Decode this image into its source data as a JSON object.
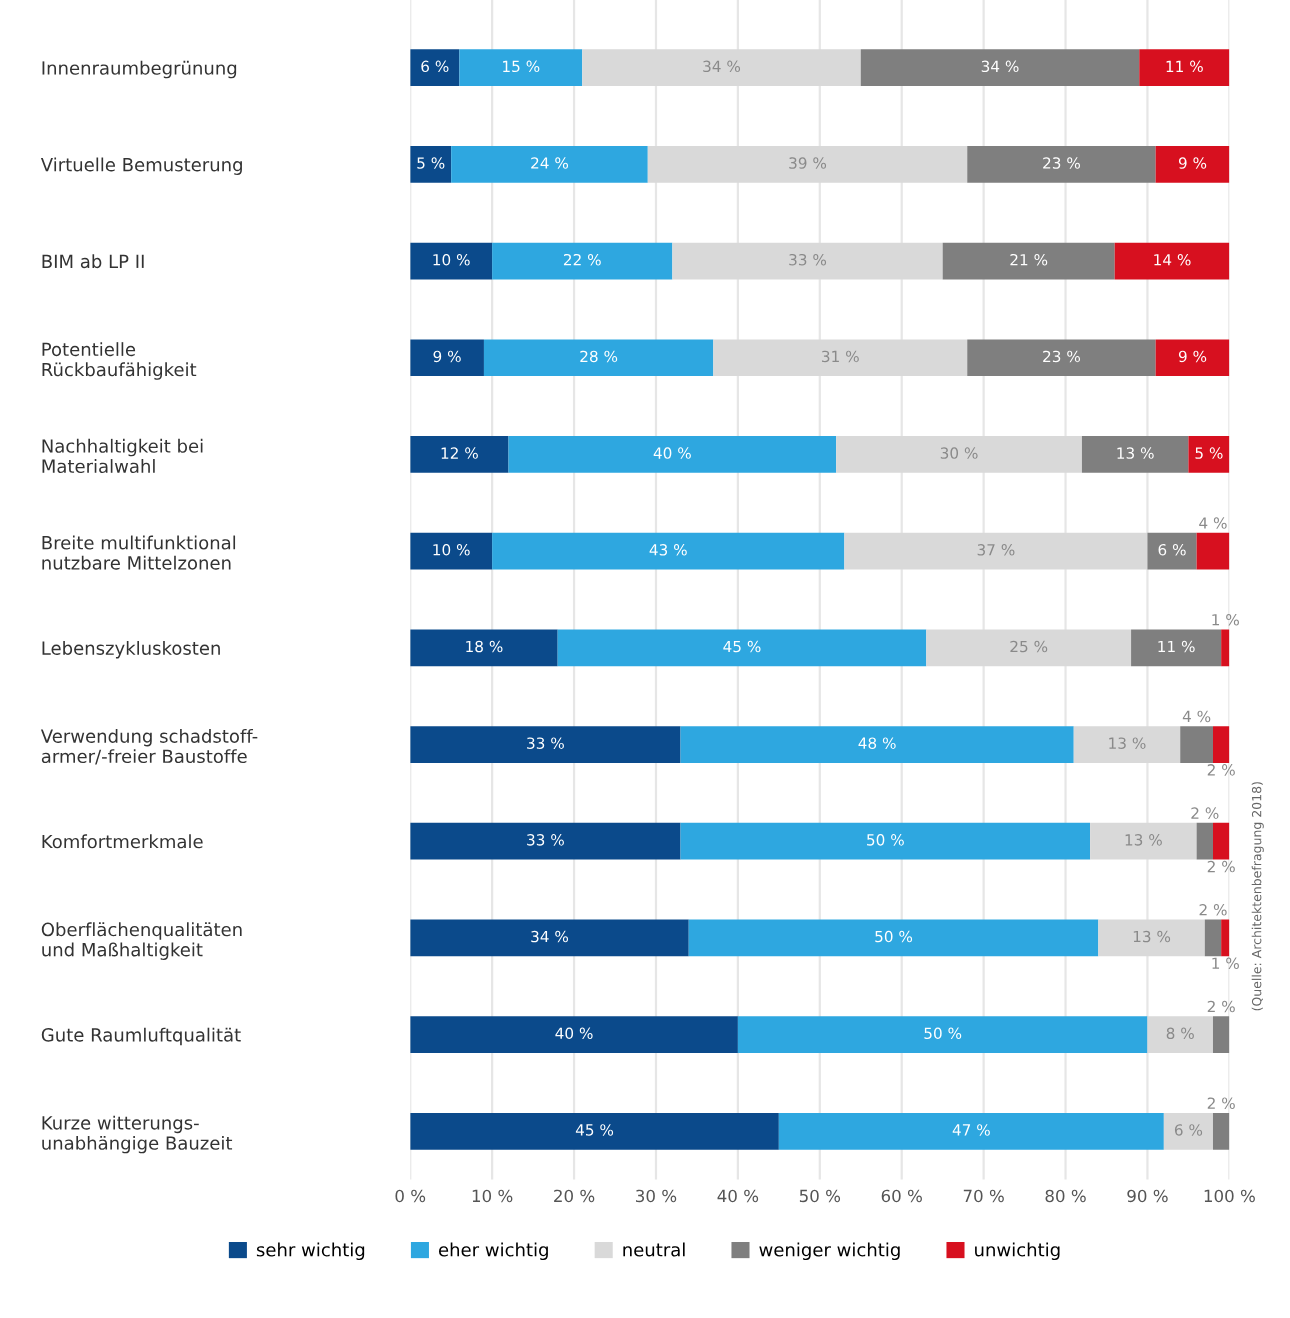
{
  "chart_data": {
    "type": "bar",
    "orientation": "horizontal",
    "stacked": true,
    "categories": [
      "Innenraumbegrünung",
      "Virtuelle Bemusterung",
      "BIM ab LP II",
      "Potentielle\nRückbaufähigkeit",
      "Nachhaltigkeit bei\nMaterialwahl",
      "Breite multifunktional\nnutzbare Mittelzonen",
      "Lebenszykluskosten",
      "Verwendung schadstoff-\narmer/-freier Baustoffe",
      "Komfortmerkmale",
      "Oberflächenqualitäten\nund Maßhaltigkeit",
      "Gute Raumluftqualität",
      "Kurze witterungs-\nunabhängige Bauzeit"
    ],
    "series": [
      {
        "name": "sehr wichtig",
        "color": "#0b4a8b",
        "values": [
          6,
          5,
          10,
          9,
          12,
          10,
          18,
          33,
          33,
          34,
          40,
          45
        ],
        "value_labels": [
          "6 %",
          "5 %",
          "10 %",
          "9 %",
          "12 %",
          "10 %",
          "18 %",
          "33 %",
          "33 %",
          "34 %",
          "40 %",
          "45 %"
        ]
      },
      {
        "name": "eher wichtig",
        "color": "#2ea7e0",
        "values": [
          15,
          24,
          22,
          28,
          40,
          43,
          45,
          48,
          50,
          50,
          50,
          47
        ],
        "value_labels": [
          "15 %",
          "24 %",
          "22 %",
          "28 %",
          "40 %",
          "43 %",
          "45 %",
          "48 %",
          "50 %",
          "50 %",
          "50 %",
          "47 %"
        ]
      },
      {
        "name": "neutral",
        "color": "#d9d9d9",
        "values": [
          34,
          39,
          33,
          31,
          30,
          37,
          25,
          13,
          13,
          13,
          8,
          6
        ],
        "value_labels": [
          "34 %",
          "39 %",
          "33 %",
          "31 %",
          "30 %",
          "37 %",
          "25 %",
          "13 %",
          "13 %",
          "13 %",
          "8 %",
          "6 %"
        ]
      },
      {
        "name": "weniger wichtig",
        "color": "#7f7f7f",
        "values": [
          34,
          23,
          21,
          23,
          13,
          6,
          11,
          4,
          2,
          2,
          2,
          2
        ],
        "value_labels": [
          "34 %",
          "23 %",
          "21 %",
          "23 %",
          "13 %",
          "6 %",
          "11 %",
          "4 %",
          "2 %",
          "2 %",
          "2 %",
          "2 %"
        ]
      },
      {
        "name": "unwichtig",
        "color": "#d7101f",
        "values": [
          11,
          9,
          14,
          9,
          5,
          4,
          1,
          2,
          2,
          1,
          null,
          null
        ],
        "value_labels": [
          "11 %",
          "9 %",
          "14 %",
          "9 %",
          "5 %",
          "4 %",
          "1 %",
          "2 %",
          "2 %",
          "1 %",
          null,
          null
        ]
      }
    ],
    "xlim": [
      0,
      100
    ],
    "xticks": [
      {
        "value": 0,
        "label": "0 %"
      },
      {
        "value": 10,
        "label": "10 %"
      },
      {
        "value": 20,
        "label": "20 %"
      },
      {
        "value": 30,
        "label": "30 %"
      },
      {
        "value": 40,
        "label": "40 %"
      },
      {
        "value": 50,
        "label": "50 %"
      },
      {
        "value": 60,
        "label": "60 %"
      },
      {
        "value": 70,
        "label": "70 %"
      },
      {
        "value": 80,
        "label": "80 %"
      },
      {
        "value": 90,
        "label": "90 %"
      },
      {
        "value": 100,
        "label": "100 %"
      }
    ],
    "grid": "x",
    "legend": "bottom",
    "annotations": [
      "(Quelle: Architektenbefragung 2018)"
    ]
  }
}
